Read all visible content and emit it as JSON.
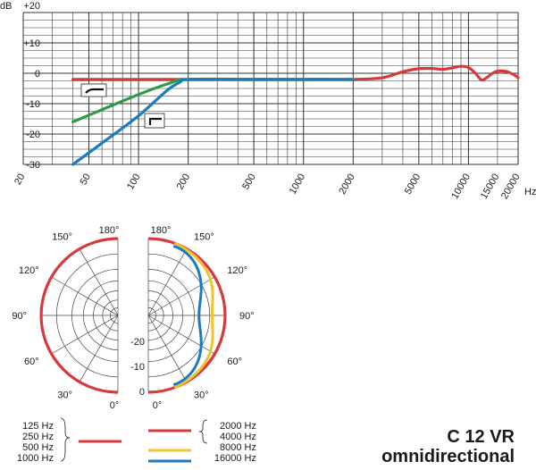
{
  "frequency_response": {
    "db_unit": "dB",
    "hz_unit": "Hz",
    "db_ticks": [
      {
        "value": 20,
        "label": "+20"
      },
      {
        "value": 10,
        "label": "+10"
      },
      {
        "value": 0,
        "label": "0"
      },
      {
        "value": -10,
        "label": "-10"
      },
      {
        "value": -20,
        "label": "-20"
      },
      {
        "value": -30,
        "label": "-30"
      }
    ],
    "freq_ticks": [
      {
        "value": 20,
        "label": "20"
      },
      {
        "value": 50,
        "label": "50"
      },
      {
        "value": 100,
        "label": "100"
      },
      {
        "value": 200,
        "label": "200"
      },
      {
        "value": 500,
        "label": "500"
      },
      {
        "value": 1000,
        "label": "1000"
      },
      {
        "value": 2000,
        "label": "2000"
      },
      {
        "value": 5000,
        "label": "5000"
      },
      {
        "value": 10000,
        "label": "10000"
      },
      {
        "value": 15000,
        "label": "15000"
      },
      {
        "value": 20000,
        "label": "20000"
      }
    ]
  },
  "polar": {
    "left_angle_labels": [
      "180°",
      "150°",
      "120°",
      "90°",
      "60°",
      "30°",
      "0°"
    ],
    "right_angle_labels": [
      "180°",
      "150°",
      "120°",
      "90°",
      "60°",
      "30°",
      "0°"
    ],
    "scale_labels": [
      "-20",
      "-10",
      "0"
    ]
  },
  "legend": {
    "left_group": [
      "125 Hz",
      "250 Hz",
      "500 Hz",
      "1000 Hz"
    ],
    "right_group": [
      "2000 Hz",
      "4000 Hz"
    ],
    "yellow": "8000 Hz",
    "blue": "16000 Hz"
  },
  "product": {
    "model": "C 12 VR",
    "pattern": "omnidirectional"
  },
  "colors": {
    "grid": "#333333",
    "red": "#d83a3a",
    "green": "#2f9b4a",
    "blue": "#1a7cc0",
    "yellow": "#f2c12e"
  },
  "chart_data": {
    "type": "line",
    "xlabel": "Hz",
    "ylabel": "dB",
    "xscale": "log",
    "xlim": [
      20,
      20000
    ],
    "ylim": [
      -35,
      20
    ],
    "series": [
      {
        "color": "#d83a3a",
        "x": [
          40,
          100,
          200,
          500,
          1000,
          2000,
          3000,
          4000,
          5000,
          6000,
          7000,
          8000,
          9000,
          10000,
          11000,
          12000,
          13000,
          14000,
          15000,
          17000,
          19000,
          20000
        ],
        "y": [
          -2,
          -2,
          -2,
          -2,
          -2,
          -2,
          -1.5,
          0.5,
          1.5,
          1.6,
          1.3,
          1.8,
          2.3,
          1.9,
          0,
          -2.2,
          -1.3,
          0,
          0.7,
          0.6,
          -0.6,
          -1.5
        ]
      },
      {
        "color": "#2f9b4a",
        "x": [
          40,
          60,
          100,
          150,
          200,
          500,
          1000,
          2000
        ],
        "y": [
          -16,
          -12,
          -7,
          -3.5,
          -2,
          -2,
          -2,
          -2
        ]
      },
      {
        "color": "#1a7cc0",
        "x": [
          40,
          60,
          100,
          150,
          180,
          200,
          500,
          1000,
          2000
        ],
        "y": [
          -30,
          -23,
          -14,
          -5.5,
          -2.8,
          -2,
          -2,
          -2,
          -2
        ]
      }
    ]
  }
}
